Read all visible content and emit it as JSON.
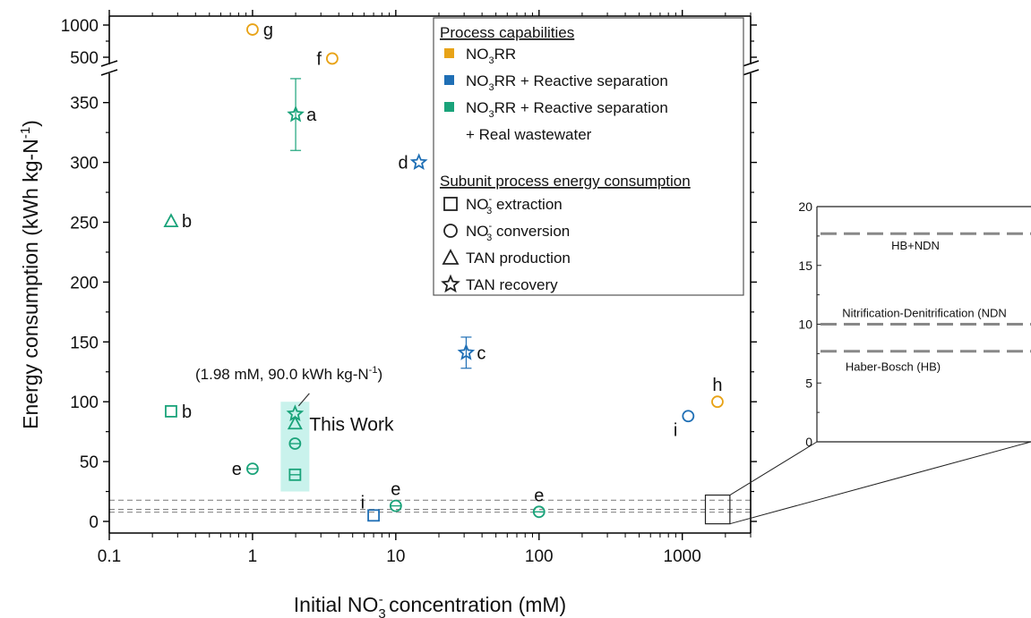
{
  "colors": {
    "no3rr": "#e8a317",
    "reactive": "#1f6fb5",
    "wastewater": "#1aa37a",
    "highlight": "#c9f2ec",
    "ref_line": "#888888",
    "axis": "#000000"
  },
  "chart_data": [
    {
      "type": "scatter",
      "xscale": "log",
      "xlim": [
        0.1,
        3000
      ],
      "ylim": [
        0,
        1200
      ],
      "y_axis_break": [
        370,
        500
      ],
      "xlabel_pre": "Initial NO",
      "xlabel_sub": "3",
      "xlabel_sup": "-",
      "xlabel_post": " concentration (mM)",
      "ylabel": "Energy consumption (kWh kg-N",
      "ylabel_sup": "-1",
      "ylabel_post": ")",
      "x_ticks": [
        {
          "v": 0.1,
          "label": "0.1"
        },
        {
          "v": 1,
          "label": "1"
        },
        {
          "v": 10,
          "label": "10"
        },
        {
          "v": 100,
          "label": "100"
        },
        {
          "v": 1000,
          "label": "1000"
        }
      ],
      "y_ticks": [
        {
          "v": 0,
          "label": "0"
        },
        {
          "v": 50,
          "label": "50"
        },
        {
          "v": 100,
          "label": "100"
        },
        {
          "v": 150,
          "label": "150"
        },
        {
          "v": 200,
          "label": "200"
        },
        {
          "v": 250,
          "label": "250"
        },
        {
          "v": 300,
          "label": "300"
        },
        {
          "v": 350,
          "label": "350"
        },
        {
          "v": 500,
          "label": "500"
        },
        {
          "v": 1000,
          "label": "1000"
        }
      ],
      "reference_lines": [
        {
          "name": "HB+NDN",
          "y": 17.7
        },
        {
          "name": "Nitrification-Denitrification (NDN)",
          "y": 10
        },
        {
          "name": "Haber-Bosch (HB)",
          "y": 7.7
        }
      ],
      "points": [
        {
          "x": 1.0,
          "y": 930,
          "marker": "circle",
          "category": "no3rr",
          "label": "g",
          "label_pos": "right"
        },
        {
          "x": 3.6,
          "y": 480,
          "marker": "circle",
          "category": "no3rr",
          "label": "f",
          "label_pos": "left"
        },
        {
          "x": 1760,
          "y": 100,
          "marker": "circle",
          "category": "no3rr",
          "label": "h",
          "label_pos": "top"
        },
        {
          "x": 2.0,
          "y": 340,
          "yerr": 30,
          "marker": "star",
          "category": "wastewater",
          "label": "a",
          "label_pos": "right"
        },
        {
          "x": 14.5,
          "y": 300,
          "marker": "star",
          "category": "reactive",
          "label": "d",
          "label_pos": "left"
        },
        {
          "x": 0.27,
          "y": 251,
          "marker": "triangle",
          "category": "wastewater",
          "label": "b",
          "label_pos": "right"
        },
        {
          "x": 0.27,
          "y": 92,
          "marker": "square",
          "category": "wastewater",
          "label": "b",
          "label_pos": "right"
        },
        {
          "x": 31,
          "y": 141,
          "yerr": 13,
          "marker": "star",
          "category": "reactive",
          "label": "c",
          "label_pos": "right"
        },
        {
          "x": 1100,
          "y": 88,
          "marker": "circle",
          "category": "reactive",
          "label": "i",
          "label_pos": "bottomleft"
        },
        {
          "x": 1.0,
          "y": 44,
          "marker": "circle-bar",
          "category": "wastewater",
          "label": "e",
          "label_pos": "left"
        },
        {
          "x": 10,
          "y": 13,
          "marker": "circle-bar",
          "category": "wastewater",
          "label": "e",
          "label_pos": "top"
        },
        {
          "x": 100,
          "y": 8,
          "marker": "circle-bar",
          "category": "wastewater",
          "label": "e",
          "label_pos": "top"
        },
        {
          "x": 7,
          "y": 5,
          "marker": "square",
          "category": "reactive",
          "label": "i",
          "label_pos": "topleft"
        },
        {
          "x": 1.98,
          "y": 90,
          "marker": "star",
          "category": "wastewater",
          "label": "",
          "label_pos": "none"
        },
        {
          "x": 1.98,
          "y": 82,
          "marker": "triangle",
          "category": "wastewater",
          "label": "",
          "label_pos": "none"
        },
        {
          "x": 1.98,
          "y": 65,
          "marker": "circle-bar",
          "category": "wastewater",
          "label": "",
          "label_pos": "none"
        },
        {
          "x": 1.98,
          "y": 39,
          "marker": "square-bar",
          "category": "wastewater",
          "label": "",
          "label_pos": "none"
        }
      ],
      "annotations": {
        "this_work": "This Work",
        "callout_text": "(1.98 mM, 90.0 kWh kg-N",
        "callout_sup": "-1",
        "callout_post": ")"
      },
      "legend": {
        "placement": "top-right",
        "capabilities_title": "Process capabilities",
        "capabilities": [
          {
            "category": "no3rr",
            "lines": [
              {
                "t": "NO",
                "sub": "3",
                "post": "RR"
              }
            ]
          },
          {
            "category": "reactive",
            "lines": [
              {
                "t": "NO",
                "sub": "3",
                "post": "RR + Reactive separation"
              }
            ]
          },
          {
            "category": "wastewater",
            "lines": [
              {
                "t": "NO",
                "sub": "3",
                "post": "RR + Reactive separation"
              },
              {
                "t": "+ Real wastewater",
                "sub": "",
                "post": ""
              }
            ]
          }
        ],
        "subunit_title": "Subunit process energy consumption",
        "subunits": [
          {
            "marker": "square",
            "t": "NO",
            "sup": "-",
            "sub": "3",
            "post": " extraction"
          },
          {
            "marker": "circle",
            "t": "NO",
            "sup": "-",
            "sub": "3",
            "post": " conversion"
          },
          {
            "marker": "triangle",
            "t": "TAN production",
            "sup": "",
            "sub": "",
            "post": ""
          },
          {
            "marker": "star",
            "t": "TAN recovery",
            "sup": "",
            "sub": "",
            "post": ""
          }
        ]
      }
    },
    {
      "type": "line",
      "role": "inset-zoom",
      "ylim": [
        0,
        20
      ],
      "y_ticks": [
        {
          "v": 0,
          "label": "0"
        },
        {
          "v": 5,
          "label": "5"
        },
        {
          "v": 10,
          "label": "10"
        },
        {
          "v": 15,
          "label": "15"
        },
        {
          "v": 20,
          "label": "20"
        }
      ],
      "series": [
        {
          "name": "HB+NDN",
          "y": 17.7
        },
        {
          "name": "Nitrification-Denitrification (NDN",
          "y": 10
        },
        {
          "name": "Haber-Bosch (HB)",
          "y": 7.7
        }
      ]
    }
  ]
}
